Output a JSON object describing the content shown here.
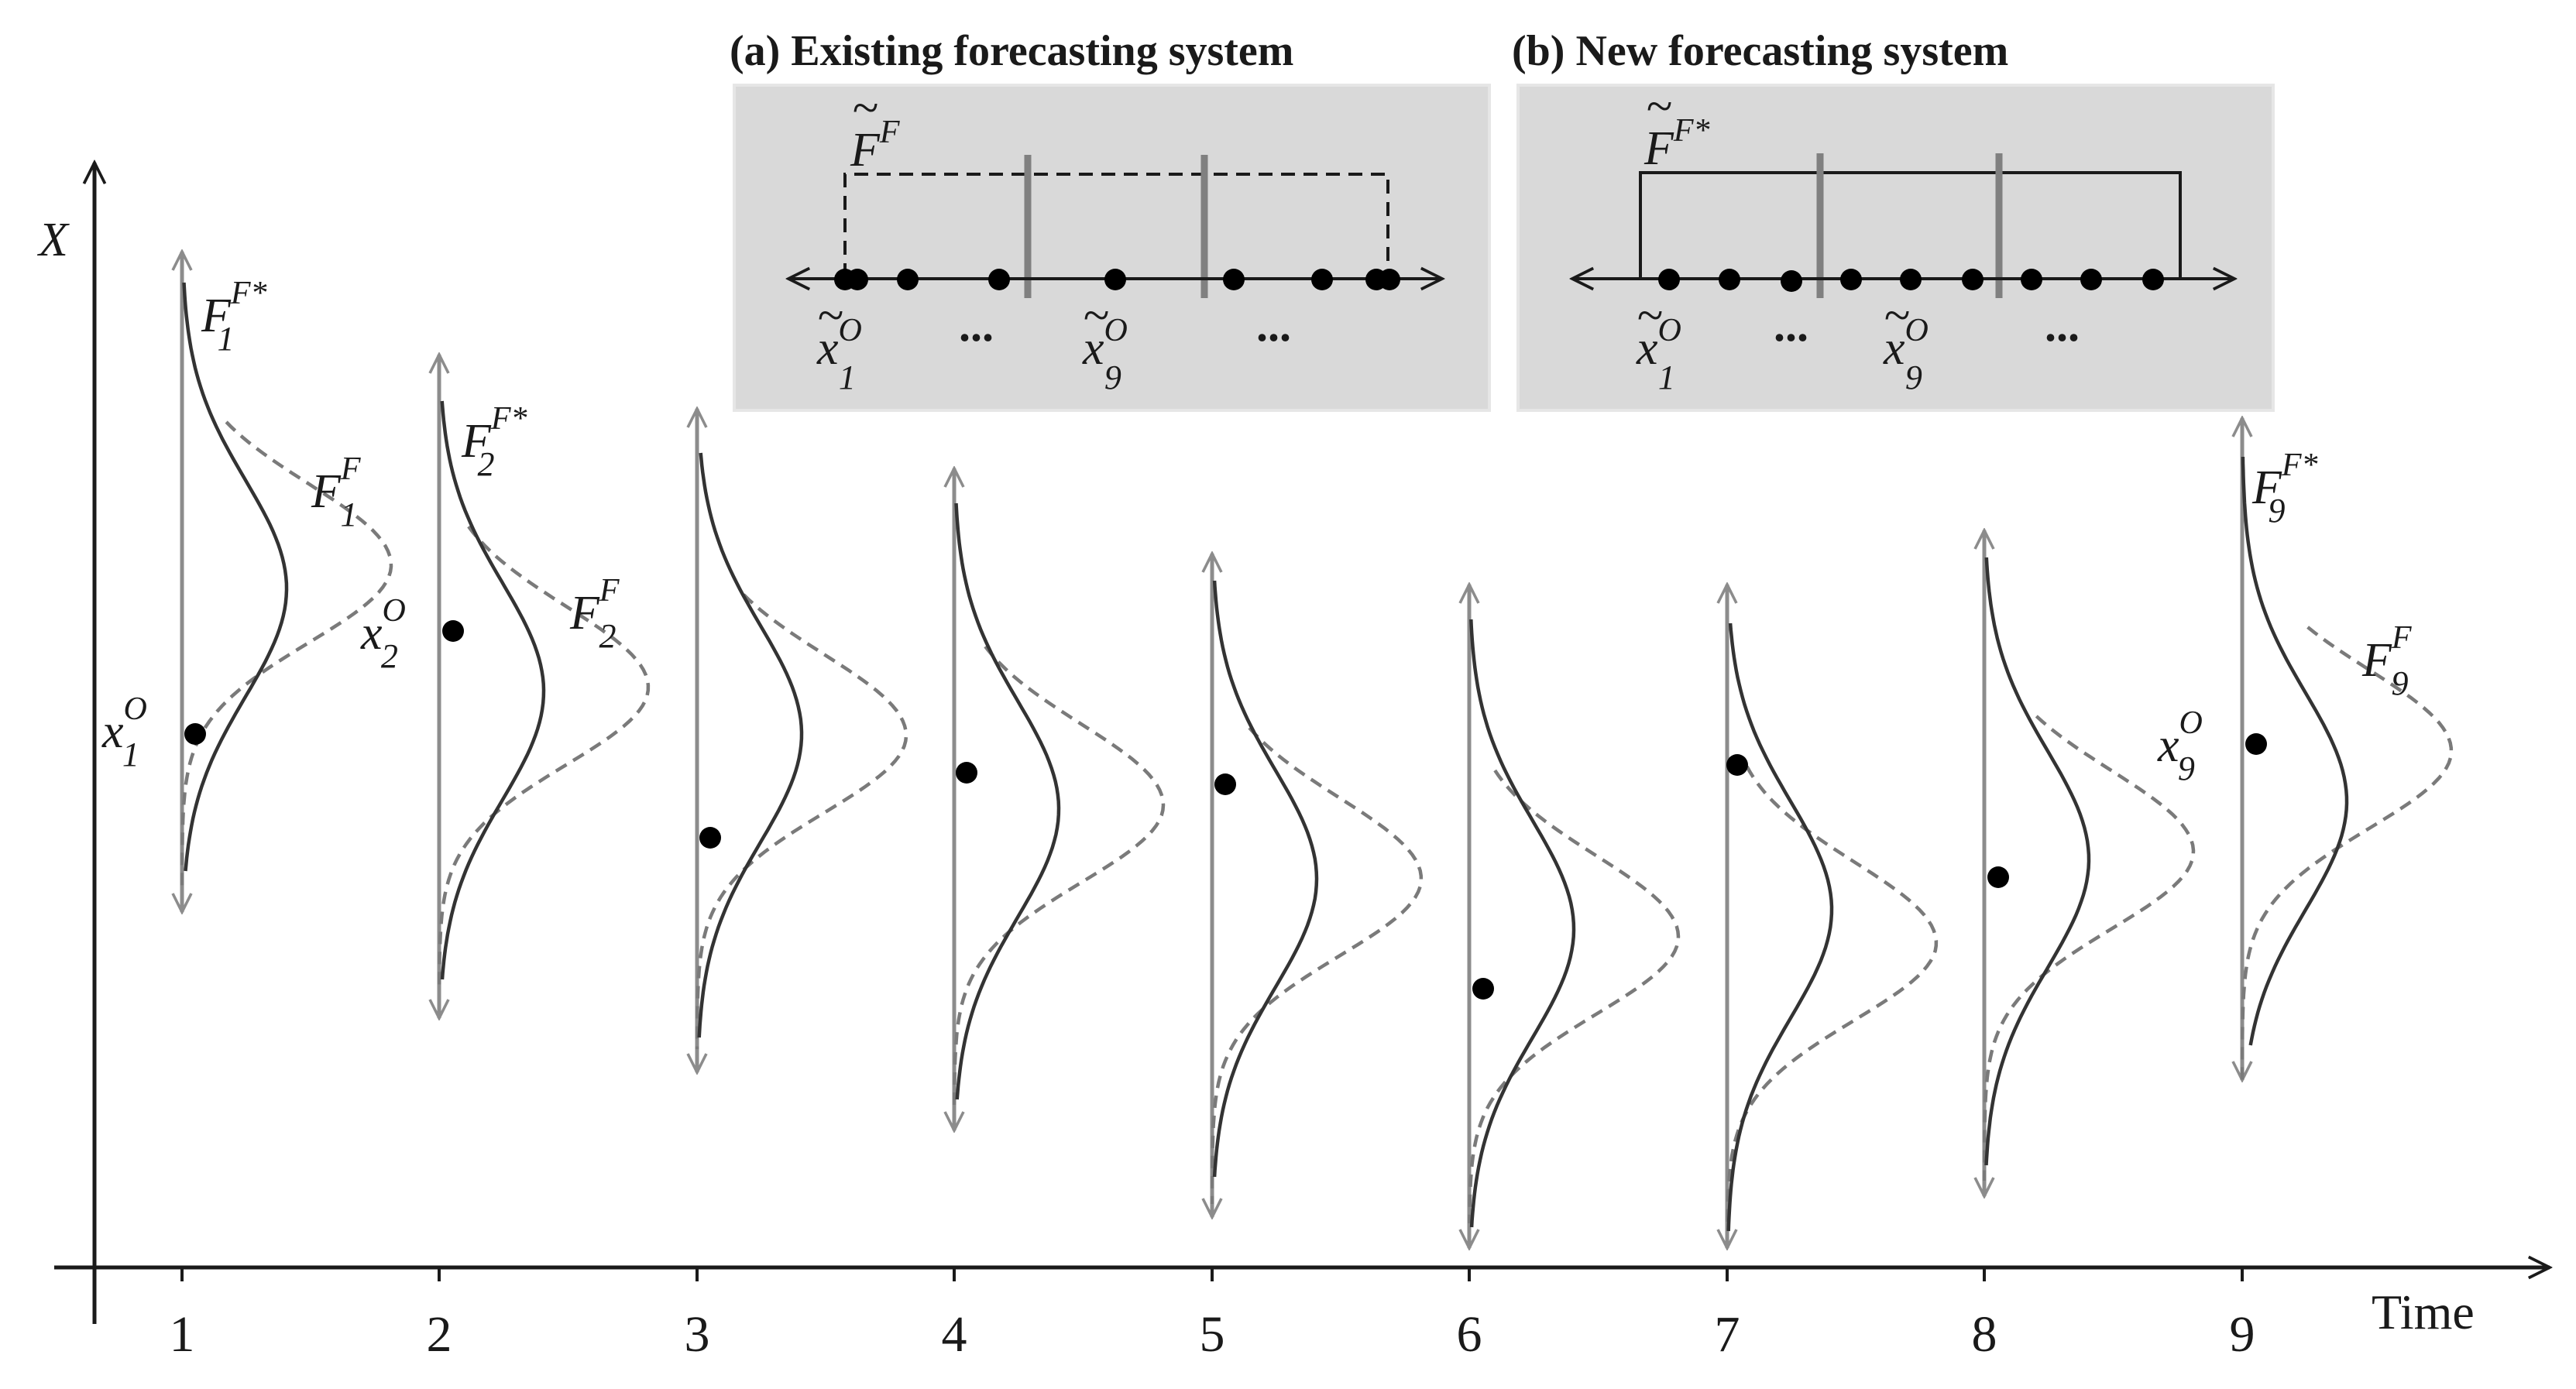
{
  "colors": {
    "axis": "#1a1a1a",
    "range_arrow": "#8c8c8c",
    "new_forecast_curve": "#333333",
    "existing_forecast_curve": "#7a7a7a",
    "inset_background": "#d9d9d9",
    "inset_border": "#e6e6e6",
    "observation_dot": "#000000"
  },
  "axes": {
    "y_label": "X",
    "x_label": "Time",
    "time_ticks": [
      "1",
      "2",
      "3",
      "4",
      "5",
      "6",
      "7",
      "8",
      "9"
    ]
  },
  "inset_a": {
    "title": "(a) Existing forecasting system",
    "distribution": {
      "symbol": "F",
      "tilde": "~",
      "superscript": "F"
    },
    "sample_first": {
      "symbol": "x",
      "tilde": "~",
      "subscript": "1",
      "superscript": "O"
    },
    "sample_ninth": {
      "symbol": "x",
      "tilde": "~",
      "subscript": "9",
      "superscript": "O"
    },
    "ellipsis": "...",
    "line_style": "dashed"
  },
  "inset_b": {
    "title": "(b) New forecasting system",
    "distribution": {
      "symbol": "F",
      "tilde": "~",
      "superscript": "F*"
    },
    "sample_first": {
      "symbol": "x",
      "tilde": "~",
      "subscript": "1",
      "superscript": "O"
    },
    "sample_ninth": {
      "symbol": "x",
      "tilde": "~",
      "subscript": "9",
      "superscript": "O"
    },
    "ellipsis": "...",
    "line_style": "solid"
  },
  "curve_labels": [
    {
      "time": "1",
      "kind": "new",
      "symbol": "F",
      "subscript": "1",
      "superscript": "F*"
    },
    {
      "time": "1",
      "kind": "existing",
      "symbol": "F",
      "subscript": "1",
      "superscript": "F"
    },
    {
      "time": "1",
      "kind": "observation",
      "symbol": "x",
      "subscript": "1",
      "superscript": "O"
    },
    {
      "time": "2",
      "kind": "new",
      "symbol": "F",
      "subscript": "2",
      "superscript": "F*"
    },
    {
      "time": "2",
      "kind": "existing",
      "symbol": "F",
      "subscript": "2",
      "superscript": "F"
    },
    {
      "time": "2",
      "kind": "observation",
      "symbol": "x",
      "subscript": "2",
      "superscript": "O"
    },
    {
      "time": "9",
      "kind": "new",
      "symbol": "F",
      "subscript": "9",
      "superscript": "F*"
    },
    {
      "time": "9",
      "kind": "existing",
      "symbol": "F",
      "subscript": "9",
      "superscript": "F"
    },
    {
      "time": "9",
      "kind": "observation",
      "symbol": "x",
      "subscript": "9",
      "superscript": "O"
    }
  ]
}
